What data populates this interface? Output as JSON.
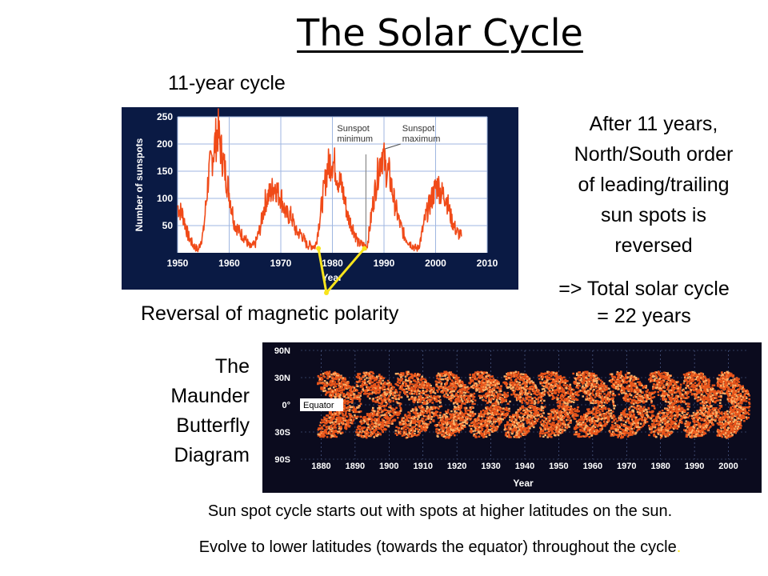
{
  "slide": {
    "title": "The Solar Cycle",
    "cycle_label": "11-year cycle",
    "reversal_label": "Reversal of magnetic polarity",
    "after_text": [
      "After 11 years,",
      "North/South order",
      "of leading/trailing",
      "sun spots is",
      "reversed"
    ],
    "total_text": [
      "=> Total solar cycle",
      "= 22 years"
    ],
    "maunder_label": [
      "The",
      "Maunder",
      "Butterfly",
      "Diagram"
    ],
    "note_1": "Sun spot cycle starts out with spots at higher latitudes on the sun.",
    "note_2": "Evolve to lower latitudes (towards the equator) throughout the cycle",
    "note_2_dot": "."
  },
  "colors": {
    "chart_bg": "#0a1a44",
    "plot_bg": "#ffffff",
    "line": "#f04a18",
    "grid": "#9fb6e0",
    "marker": "#f8e41c",
    "butterfly_bg": "#0b0b1e",
    "butterfly_dense": "#e8541a",
    "butterfly_light": "#ffb066"
  },
  "chart_data": [
    {
      "type": "line",
      "title": "",
      "xlabel": "Year",
      "ylabel": "Number of sunspots",
      "xlim": [
        1950,
        2010
      ],
      "ylim": [
        0,
        250
      ],
      "x_ticks": [
        "1950",
        "1960",
        "1970",
        "1980",
        "1990",
        "2000",
        "2010"
      ],
      "y_ticks": [
        "50",
        "100",
        "150",
        "200",
        "250"
      ],
      "grid": true,
      "annotations": [
        {
          "text_lines": [
            "Sunspot",
            "minimum"
          ],
          "x": 1986.5,
          "y": 10
        },
        {
          "text_lines": [
            "Sunspot",
            "maximum"
          ],
          "x": 1989.5,
          "y": 190
        }
      ],
      "series": [
        {
          "x": [
            1950,
            1951,
            1952,
            1953,
            1954,
            1955,
            1956,
            1957,
            1957.8,
            1958.5,
            1959,
            1960,
            1961,
            1962,
            1963,
            1964,
            1965,
            1966,
            1967,
            1968,
            1968.9,
            1969.5,
            1970,
            1971,
            1972,
            1973,
            1974,
            1975,
            1976,
            1976.7,
            1977,
            1978,
            1979,
            1979.9,
            1980.5,
            1981,
            1982,
            1983,
            1984,
            1985,
            1986,
            1986.7,
            1987,
            1988,
            1989,
            1989.6,
            1990.5,
            1991,
            1992,
            1993,
            1994,
            1995,
            1996,
            1996.6,
            1997,
            1998,
            1999,
            2000,
            2000.5,
            2001,
            2002,
            2003,
            2004,
            2005
          ],
          "y": [
            85,
            70,
            32,
            14,
            5,
            38,
            142,
            190,
            225,
            185,
            160,
            110,
            55,
            38,
            28,
            10,
            15,
            45,
            95,
            110,
            125,
            108,
            105,
            70,
            68,
            38,
            34,
            15,
            13,
            12,
            28,
            92,
            155,
            172,
            160,
            140,
            115,
            66,
            45,
            18,
            14,
            12,
            30,
            100,
            157,
            185,
            150,
            145,
            94,
            55,
            30,
            18,
            9,
            8,
            21,
            64,
            93,
            120,
            125,
            110,
            104,
            64,
            40,
            30
          ]
        }
      ],
      "markers": [
        {
          "label": "",
          "x": 1977.3,
          "y": 0
        },
        {
          "label": "",
          "x": 1986.2,
          "y": 0
        }
      ]
    },
    {
      "type": "scatter",
      "title": "",
      "xlabel": "Year",
      "ylabel": "",
      "xlim": [
        1874,
        2006
      ],
      "ylim": [
        -90,
        90
      ],
      "x_ticks": [
        "1880",
        "1890",
        "1900",
        "1910",
        "1920",
        "1930",
        "1940",
        "1950",
        "1960",
        "1970",
        "1980",
        "1990",
        "2000"
      ],
      "y_ticks": [
        "90N",
        "30N",
        "0°",
        "30S",
        "90S"
      ],
      "equator_label": "Equator",
      "cycles": [
        {
          "start": 1878.9,
          "end": 1890.2
        },
        {
          "start": 1890.2,
          "end": 1902.0
        },
        {
          "start": 1902.0,
          "end": 1913.6
        },
        {
          "start": 1913.6,
          "end": 1923.6
        },
        {
          "start": 1923.6,
          "end": 1933.8
        },
        {
          "start": 1933.8,
          "end": 1944.2
        },
        {
          "start": 1944.2,
          "end": 1954.3
        },
        {
          "start": 1954.3,
          "end": 1964.9
        },
        {
          "start": 1964.9,
          "end": 1976.5
        },
        {
          "start": 1976.5,
          "end": 1986.8
        },
        {
          "start": 1986.8,
          "end": 1996.4
        },
        {
          "start": 1996.4,
          "end": 2004.5
        }
      ]
    }
  ]
}
